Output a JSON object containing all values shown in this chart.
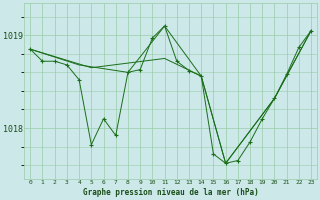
{
  "title": "Graphe pression niveau de la mer (hPa)",
  "bg_color": "#cce8e8",
  "grid_color": "#99ccaa",
  "line_color": "#1a6e1a",
  "marker_color": "#1a6e1a",
  "text_color": "#1a4e1a",
  "xlim": [
    -0.5,
    23.5
  ],
  "ylim": [
    1017.45,
    1019.35
  ],
  "yticks": [
    1018,
    1019
  ],
  "xticks": [
    0,
    1,
    2,
    3,
    4,
    5,
    6,
    7,
    8,
    9,
    10,
    11,
    12,
    13,
    14,
    15,
    16,
    17,
    18,
    19,
    20,
    21,
    22,
    23
  ],
  "series_zigzag_x": [
    0,
    1,
    2,
    3,
    4,
    5,
    6,
    7,
    8,
    9,
    10,
    11,
    12,
    13,
    14,
    15,
    16,
    17,
    18,
    19,
    20,
    21,
    22,
    23
  ],
  "series_zigzag_y": [
    1018.85,
    1018.72,
    1018.72,
    1018.68,
    1018.52,
    1017.82,
    1018.1,
    1017.92,
    1018.6,
    1018.63,
    1018.97,
    1019.1,
    1018.72,
    1018.62,
    1018.56,
    1017.72,
    1017.62,
    1017.65,
    1017.85,
    1018.1,
    1018.32,
    1018.58,
    1018.87,
    1019.05
  ],
  "series_line1_x": [
    0,
    4,
    8,
    11,
    14,
    16,
    20,
    23
  ],
  "series_line1_y": [
    1018.85,
    1018.68,
    1018.6,
    1019.1,
    1018.56,
    1017.62,
    1018.32,
    1019.05
  ],
  "series_line2_x": [
    0,
    5,
    11,
    14,
    16,
    20,
    23
  ],
  "series_line2_y": [
    1018.85,
    1018.65,
    1018.75,
    1018.56,
    1017.62,
    1018.32,
    1019.05
  ]
}
